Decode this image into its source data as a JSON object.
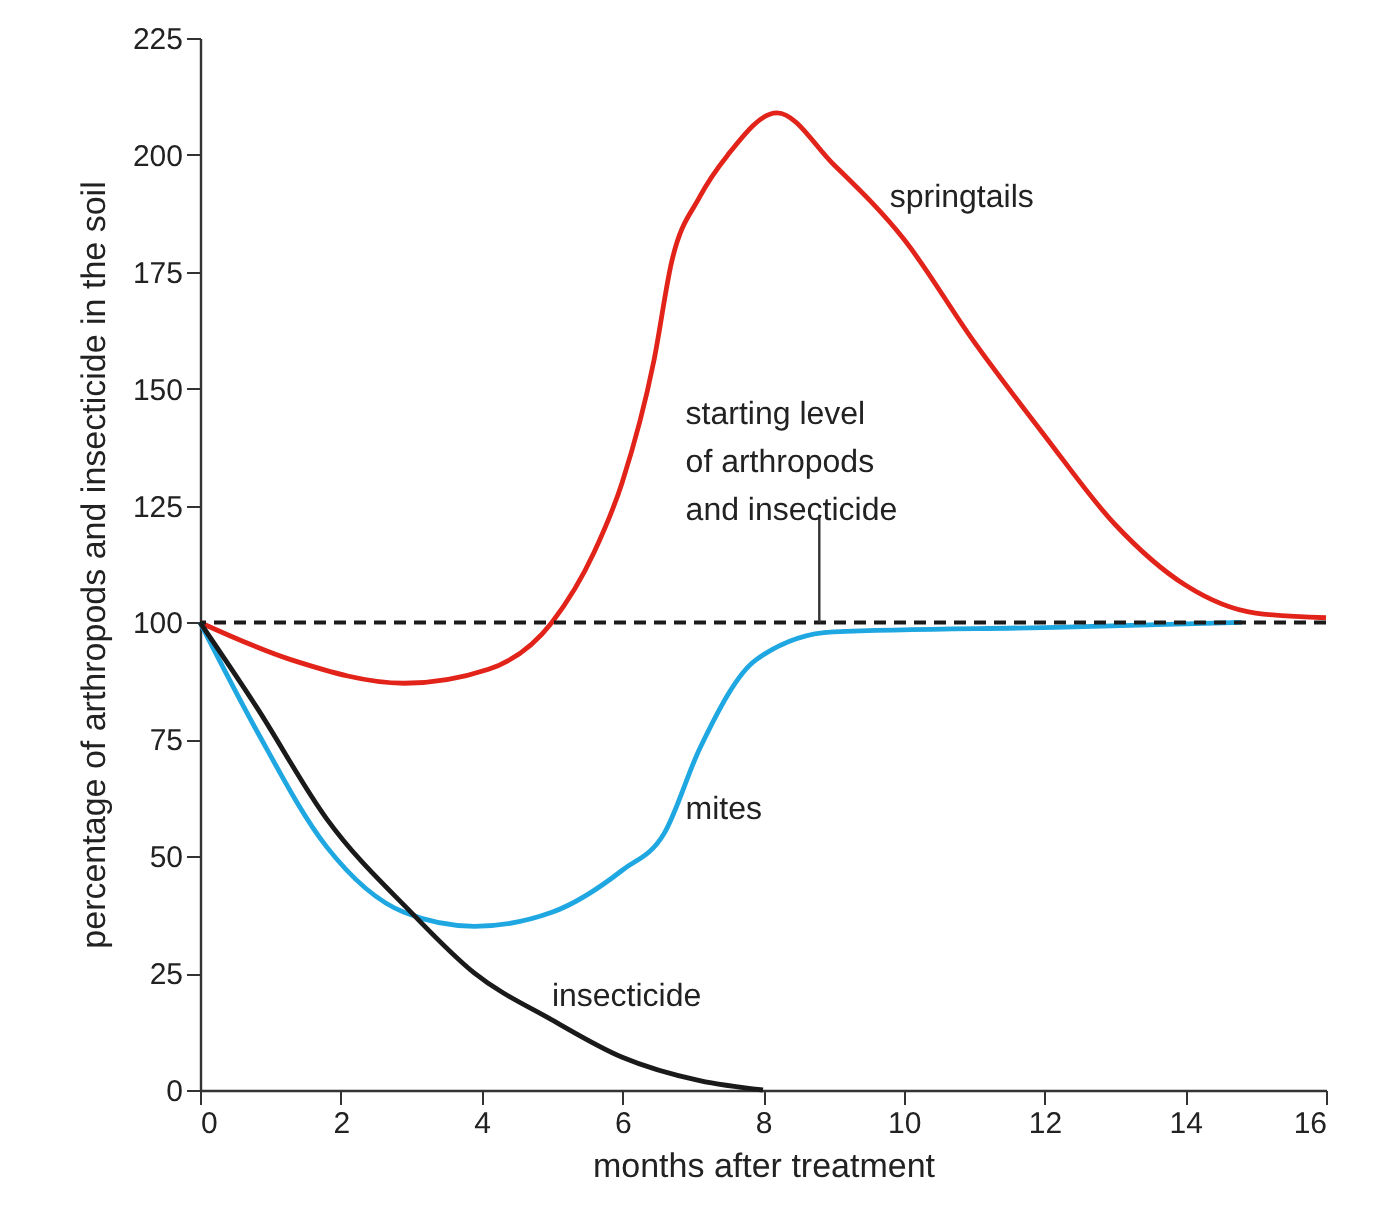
{
  "chart_data": {
    "type": "line",
    "xlabel": "months after treatment",
    "ylabel": "percentage of arthropods and insecticide in the soil",
    "xlim": [
      0,
      16
    ],
    "xticks": [
      0,
      2,
      4,
      6,
      8,
      10,
      12,
      14,
      16
    ],
    "ylim": [
      0,
      225
    ],
    "yticks": [
      0,
      25,
      50,
      75,
      100,
      125,
      150,
      175,
      200,
      225
    ],
    "grid": false,
    "legend": false,
    "marker": "none",
    "line_style": "solid",
    "series": [
      {
        "name": "springtails",
        "color": "#e2231a",
        "x": [
          0,
          1.3,
          2.9,
          4.1,
          5.0,
          5.6,
          6.0,
          6.45,
          6.7,
          7.1,
          7.5,
          8.2,
          9,
          10,
          11,
          12,
          13,
          14,
          15,
          16
        ],
        "values": [
          100,
          92,
          87,
          90,
          100,
          115,
          130,
          156,
          177,
          191,
          200,
          209,
          198,
          182,
          160,
          140,
          121,
          108,
          102,
          101
        ]
      },
      {
        "name": "mites",
        "color": "#1ea7e1",
        "x": [
          0,
          0.8,
          1.8,
          2.9,
          3.9,
          5.0,
          6.0,
          6.6,
          7.1,
          7.9,
          9.0,
          12.3,
          14.8
        ],
        "values": [
          100,
          77,
          52,
          38,
          35,
          38,
          47,
          55,
          73,
          92,
          98,
          99,
          100
        ]
      },
      {
        "name": "insecticide",
        "color": "#1a1a1a",
        "x": [
          0,
          0.8,
          1.8,
          3.0,
          3.9,
          5.0,
          6.0,
          7.1,
          8.0
        ],
        "values": [
          100,
          82,
          58,
          38,
          25,
          15,
          7,
          2,
          0
        ]
      }
    ],
    "ref_lines": [
      {
        "axis": "y",
        "value": 100,
        "label": "starting level\nof arthropods\nand insecticide",
        "line_style": "dashed",
        "color": "#1a1a1a"
      }
    ]
  }
}
